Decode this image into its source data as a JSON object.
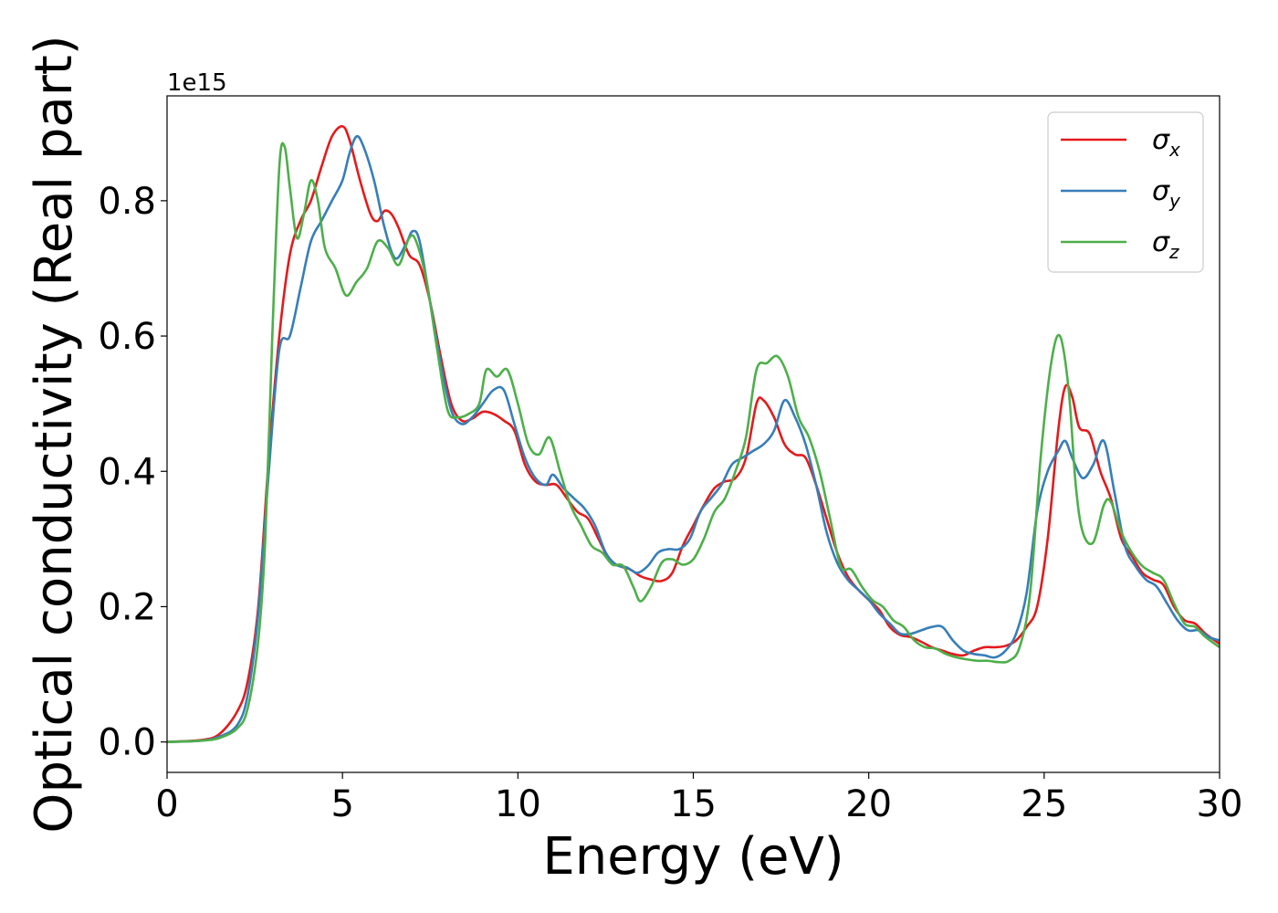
{
  "chart_data": {
    "type": "line",
    "xlabel": "Energy (eV)",
    "ylabel": "Optical conductivity (Real part)",
    "y_offset_label": "1e15",
    "xlim": [
      0,
      30
    ],
    "ylim": [
      -0.045,
      0.955
    ],
    "x_ticks": [
      0,
      5,
      10,
      15,
      20,
      25,
      30
    ],
    "y_ticks": [
      0.0,
      0.2,
      0.4,
      0.6,
      0.8
    ],
    "x_tick_labels": [
      "0",
      "5",
      "10",
      "15",
      "20",
      "25",
      "30"
    ],
    "y_tick_labels": [
      "0.0",
      "0.2",
      "0.4",
      "0.6",
      "0.8"
    ],
    "grid": false,
    "legend": {
      "position": "top-right"
    },
    "series": [
      {
        "name": "σ",
        "sub": "x",
        "color": "#e41a1c",
        "points": [
          [
            0,
            0
          ],
          [
            1,
            0.003
          ],
          [
            1.5,
            0.012
          ],
          [
            2,
            0.045
          ],
          [
            2.3,
            0.09
          ],
          [
            2.6,
            0.2
          ],
          [
            2.9,
            0.42
          ],
          [
            3.2,
            0.6
          ],
          [
            3.5,
            0.72
          ],
          [
            3.8,
            0.77
          ],
          [
            4.1,
            0.8
          ],
          [
            4.4,
            0.85
          ],
          [
            4.7,
            0.895
          ],
          [
            5.0,
            0.91
          ],
          [
            5.2,
            0.89
          ],
          [
            5.5,
            0.83
          ],
          [
            5.8,
            0.78
          ],
          [
            6.0,
            0.77
          ],
          [
            6.2,
            0.785
          ],
          [
            6.4,
            0.78
          ],
          [
            6.6,
            0.76
          ],
          [
            6.9,
            0.72
          ],
          [
            7.2,
            0.705
          ],
          [
            7.5,
            0.65
          ],
          [
            7.8,
            0.57
          ],
          [
            8.1,
            0.5
          ],
          [
            8.4,
            0.475
          ],
          [
            8.7,
            0.478
          ],
          [
            9.0,
            0.488
          ],
          [
            9.3,
            0.485
          ],
          [
            9.6,
            0.475
          ],
          [
            9.9,
            0.46
          ],
          [
            10.2,
            0.41
          ],
          [
            10.5,
            0.385
          ],
          [
            10.8,
            0.38
          ],
          [
            11.1,
            0.38
          ],
          [
            11.4,
            0.36
          ],
          [
            11.7,
            0.34
          ],
          [
            12.0,
            0.33
          ],
          [
            12.3,
            0.3
          ],
          [
            12.6,
            0.27
          ],
          [
            12.9,
            0.26
          ],
          [
            13.2,
            0.255
          ],
          [
            13.5,
            0.245
          ],
          [
            13.8,
            0.24
          ],
          [
            14.1,
            0.238
          ],
          [
            14.4,
            0.25
          ],
          [
            14.7,
            0.29
          ],
          [
            15.0,
            0.32
          ],
          [
            15.3,
            0.35
          ],
          [
            15.6,
            0.375
          ],
          [
            15.9,
            0.385
          ],
          [
            16.2,
            0.39
          ],
          [
            16.5,
            0.42
          ],
          [
            16.8,
            0.5
          ],
          [
            17.0,
            0.505
          ],
          [
            17.3,
            0.48
          ],
          [
            17.6,
            0.44
          ],
          [
            17.9,
            0.425
          ],
          [
            18.2,
            0.42
          ],
          [
            18.5,
            0.38
          ],
          [
            18.8,
            0.33
          ],
          [
            19.1,
            0.28
          ],
          [
            19.4,
            0.245
          ],
          [
            19.7,
            0.225
          ],
          [
            20.0,
            0.21
          ],
          [
            20.3,
            0.195
          ],
          [
            20.6,
            0.17
          ],
          [
            20.9,
            0.158
          ],
          [
            21.2,
            0.155
          ],
          [
            21.5,
            0.148
          ],
          [
            21.8,
            0.14
          ],
          [
            22.1,
            0.135
          ],
          [
            22.4,
            0.13
          ],
          [
            22.7,
            0.128
          ],
          [
            23.0,
            0.135
          ],
          [
            23.3,
            0.14
          ],
          [
            23.6,
            0.14
          ],
          [
            23.9,
            0.142
          ],
          [
            24.2,
            0.15
          ],
          [
            24.5,
            0.17
          ],
          [
            24.8,
            0.2
          ],
          [
            25.1,
            0.3
          ],
          [
            25.4,
            0.46
          ],
          [
            25.6,
            0.525
          ],
          [
            25.8,
            0.51
          ],
          [
            26.0,
            0.465
          ],
          [
            26.3,
            0.455
          ],
          [
            26.6,
            0.4
          ],
          [
            26.9,
            0.36
          ],
          [
            27.2,
            0.3
          ],
          [
            27.5,
            0.275
          ],
          [
            27.8,
            0.25
          ],
          [
            28.1,
            0.24
          ],
          [
            28.4,
            0.232
          ],
          [
            28.7,
            0.2
          ],
          [
            29.0,
            0.18
          ],
          [
            29.3,
            0.175
          ],
          [
            29.6,
            0.16
          ],
          [
            30.0,
            0.145
          ]
        ]
      },
      {
        "name": "σ",
        "sub": "y",
        "color": "#377eb8",
        "points": [
          [
            0,
            0
          ],
          [
            1,
            0.002
          ],
          [
            1.5,
            0.008
          ],
          [
            2,
            0.025
          ],
          [
            2.3,
            0.07
          ],
          [
            2.6,
            0.19
          ],
          [
            2.9,
            0.4
          ],
          [
            3.2,
            0.58
          ],
          [
            3.5,
            0.6
          ],
          [
            3.8,
            0.67
          ],
          [
            4.1,
            0.74
          ],
          [
            4.4,
            0.77
          ],
          [
            4.7,
            0.8
          ],
          [
            5.0,
            0.83
          ],
          [
            5.2,
            0.87
          ],
          [
            5.4,
            0.895
          ],
          [
            5.6,
            0.88
          ],
          [
            5.9,
            0.83
          ],
          [
            6.2,
            0.76
          ],
          [
            6.5,
            0.715
          ],
          [
            6.8,
            0.735
          ],
          [
            7.0,
            0.755
          ],
          [
            7.2,
            0.74
          ],
          [
            7.5,
            0.65
          ],
          [
            7.8,
            0.56
          ],
          [
            8.1,
            0.49
          ],
          [
            8.4,
            0.47
          ],
          [
            8.7,
            0.48
          ],
          [
            9.0,
            0.5
          ],
          [
            9.3,
            0.52
          ],
          [
            9.6,
            0.52
          ],
          [
            9.9,
            0.47
          ],
          [
            10.2,
            0.42
          ],
          [
            10.5,
            0.39
          ],
          [
            10.8,
            0.38
          ],
          [
            11.0,
            0.395
          ],
          [
            11.3,
            0.375
          ],
          [
            11.6,
            0.36
          ],
          [
            11.9,
            0.345
          ],
          [
            12.2,
            0.32
          ],
          [
            12.5,
            0.28
          ],
          [
            12.8,
            0.262
          ],
          [
            13.1,
            0.258
          ],
          [
            13.4,
            0.25
          ],
          [
            13.7,
            0.26
          ],
          [
            14.0,
            0.28
          ],
          [
            14.3,
            0.285
          ],
          [
            14.6,
            0.285
          ],
          [
            14.9,
            0.3
          ],
          [
            15.2,
            0.34
          ],
          [
            15.5,
            0.36
          ],
          [
            15.8,
            0.38
          ],
          [
            16.1,
            0.41
          ],
          [
            16.4,
            0.42
          ],
          [
            16.7,
            0.43
          ],
          [
            17.0,
            0.44
          ],
          [
            17.3,
            0.46
          ],
          [
            17.6,
            0.505
          ],
          [
            17.9,
            0.48
          ],
          [
            18.2,
            0.44
          ],
          [
            18.5,
            0.38
          ],
          [
            18.8,
            0.31
          ],
          [
            19.1,
            0.265
          ],
          [
            19.4,
            0.24
          ],
          [
            19.7,
            0.225
          ],
          [
            20.0,
            0.21
          ],
          [
            20.3,
            0.19
          ],
          [
            20.6,
            0.175
          ],
          [
            20.9,
            0.16
          ],
          [
            21.2,
            0.16
          ],
          [
            21.5,
            0.165
          ],
          [
            21.8,
            0.17
          ],
          [
            22.1,
            0.17
          ],
          [
            22.4,
            0.15
          ],
          [
            22.7,
            0.135
          ],
          [
            23.0,
            0.13
          ],
          [
            23.3,
            0.128
          ],
          [
            23.6,
            0.125
          ],
          [
            23.9,
            0.135
          ],
          [
            24.2,
            0.16
          ],
          [
            24.5,
            0.22
          ],
          [
            24.8,
            0.34
          ],
          [
            25.1,
            0.4
          ],
          [
            25.4,
            0.43
          ],
          [
            25.6,
            0.445
          ],
          [
            25.8,
            0.42
          ],
          [
            26.1,
            0.39
          ],
          [
            26.4,
            0.41
          ],
          [
            26.7,
            0.445
          ],
          [
            27.0,
            0.37
          ],
          [
            27.3,
            0.29
          ],
          [
            27.6,
            0.26
          ],
          [
            27.9,
            0.24
          ],
          [
            28.2,
            0.23
          ],
          [
            28.5,
            0.205
          ],
          [
            28.8,
            0.18
          ],
          [
            29.1,
            0.165
          ],
          [
            29.4,
            0.165
          ],
          [
            29.7,
            0.155
          ],
          [
            30.0,
            0.15
          ]
        ]
      },
      {
        "name": "σ",
        "sub": "z",
        "color": "#4daf4a",
        "points": [
          [
            0,
            0
          ],
          [
            1,
            0.002
          ],
          [
            1.5,
            0.006
          ],
          [
            2,
            0.02
          ],
          [
            2.3,
            0.05
          ],
          [
            2.6,
            0.15
          ],
          [
            2.8,
            0.3
          ],
          [
            3.0,
            0.6
          ],
          [
            3.2,
            0.85
          ],
          [
            3.35,
            0.88
          ],
          [
            3.5,
            0.82
          ],
          [
            3.7,
            0.745
          ],
          [
            3.9,
            0.78
          ],
          [
            4.1,
            0.83
          ],
          [
            4.3,
            0.8
          ],
          [
            4.5,
            0.73
          ],
          [
            4.8,
            0.7
          ],
          [
            5.1,
            0.66
          ],
          [
            5.4,
            0.68
          ],
          [
            5.7,
            0.7
          ],
          [
            6.0,
            0.74
          ],
          [
            6.3,
            0.73
          ],
          [
            6.6,
            0.705
          ],
          [
            6.9,
            0.745
          ],
          [
            7.1,
            0.74
          ],
          [
            7.4,
            0.68
          ],
          [
            7.7,
            0.58
          ],
          [
            8.0,
            0.49
          ],
          [
            8.3,
            0.48
          ],
          [
            8.6,
            0.485
          ],
          [
            8.9,
            0.5
          ],
          [
            9.1,
            0.55
          ],
          [
            9.4,
            0.54
          ],
          [
            9.7,
            0.55
          ],
          [
            10.0,
            0.5
          ],
          [
            10.3,
            0.44
          ],
          [
            10.6,
            0.425
          ],
          [
            10.9,
            0.45
          ],
          [
            11.2,
            0.4
          ],
          [
            11.5,
            0.35
          ],
          [
            11.8,
            0.32
          ],
          [
            12.1,
            0.29
          ],
          [
            12.4,
            0.28
          ],
          [
            12.7,
            0.262
          ],
          [
            13.0,
            0.26
          ],
          [
            13.3,
            0.228
          ],
          [
            13.5,
            0.208
          ],
          [
            13.8,
            0.23
          ],
          [
            14.1,
            0.265
          ],
          [
            14.4,
            0.27
          ],
          [
            14.7,
            0.262
          ],
          [
            15.0,
            0.27
          ],
          [
            15.3,
            0.3
          ],
          [
            15.6,
            0.34
          ],
          [
            15.9,
            0.36
          ],
          [
            16.2,
            0.4
          ],
          [
            16.5,
            0.45
          ],
          [
            16.8,
            0.55
          ],
          [
            17.1,
            0.56
          ],
          [
            17.4,
            0.57
          ],
          [
            17.7,
            0.54
          ],
          [
            18.0,
            0.48
          ],
          [
            18.3,
            0.45
          ],
          [
            18.6,
            0.4
          ],
          [
            18.9,
            0.33
          ],
          [
            19.2,
            0.26
          ],
          [
            19.5,
            0.255
          ],
          [
            19.8,
            0.23
          ],
          [
            20.1,
            0.21
          ],
          [
            20.4,
            0.2
          ],
          [
            20.7,
            0.18
          ],
          [
            21.0,
            0.17
          ],
          [
            21.3,
            0.15
          ],
          [
            21.6,
            0.14
          ],
          [
            21.9,
            0.138
          ],
          [
            22.2,
            0.13
          ],
          [
            22.5,
            0.125
          ],
          [
            22.8,
            0.122
          ],
          [
            23.1,
            0.12
          ],
          [
            23.4,
            0.12
          ],
          [
            23.7,
            0.118
          ],
          [
            24.0,
            0.12
          ],
          [
            24.3,
            0.14
          ],
          [
            24.6,
            0.22
          ],
          [
            24.9,
            0.42
          ],
          [
            25.2,
            0.56
          ],
          [
            25.45,
            0.6
          ],
          [
            25.7,
            0.52
          ],
          [
            25.9,
            0.38
          ],
          [
            26.1,
            0.31
          ],
          [
            26.4,
            0.295
          ],
          [
            26.7,
            0.35
          ],
          [
            26.9,
            0.355
          ],
          [
            27.2,
            0.31
          ],
          [
            27.5,
            0.28
          ],
          [
            27.8,
            0.26
          ],
          [
            28.1,
            0.25
          ],
          [
            28.4,
            0.24
          ],
          [
            28.7,
            0.205
          ],
          [
            29.0,
            0.175
          ],
          [
            29.3,
            0.17
          ],
          [
            29.6,
            0.155
          ],
          [
            30.0,
            0.14
          ]
        ]
      }
    ]
  }
}
